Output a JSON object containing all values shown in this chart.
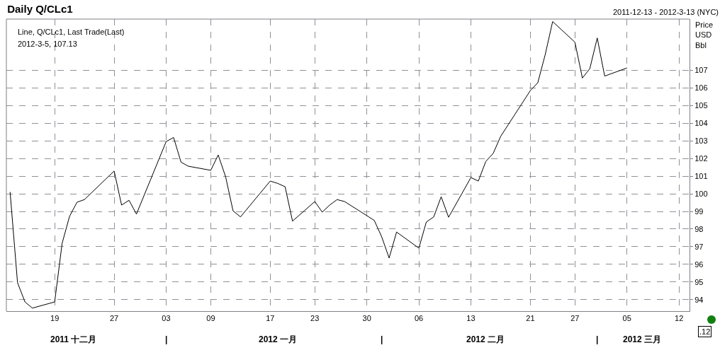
{
  "chart_data": {
    "type": "line",
    "title": "Daily Q/CLc1",
    "subtitle": "2011-12-13 - 2012-3-13 (NYC)",
    "ylabel": "Price\nUSD\nBbl",
    "annotations": [
      "Line, Q/CLc1, Last Trade(Last)",
      "2012-3-5, 107.13",
      ".12"
    ],
    "x": [
      "2011-12-13",
      "2011-12-14",
      "2011-12-15",
      "2011-12-16",
      "2011-12-19",
      "2011-12-20",
      "2011-12-21",
      "2011-12-22",
      "2011-12-23",
      "2011-12-27",
      "2011-12-28",
      "2011-12-29",
      "2011-12-30",
      "2012-01-03",
      "2012-01-04",
      "2012-01-05",
      "2012-01-06",
      "2012-01-09",
      "2012-01-10",
      "2012-01-11",
      "2012-01-12",
      "2012-01-13",
      "2012-01-17",
      "2012-01-18",
      "2012-01-19",
      "2012-01-20",
      "2012-01-23",
      "2012-01-24",
      "2012-01-25",
      "2012-01-26",
      "2012-01-27",
      "2012-01-30",
      "2012-01-31",
      "2012-02-01",
      "2012-02-02",
      "2012-02-03",
      "2012-02-06",
      "2012-02-07",
      "2012-02-08",
      "2012-02-09",
      "2012-02-10",
      "2012-02-13",
      "2012-02-14",
      "2012-02-15",
      "2012-02-16",
      "2012-02-17",
      "2012-02-21",
      "2012-02-22",
      "2012-02-23",
      "2012-02-24",
      "2012-02-27",
      "2012-02-28",
      "2012-02-29",
      "2012-03-01",
      "2012-03-02",
      "2012-03-05"
    ],
    "series": [
      {
        "color": "#000000",
        "values": [
          100.1,
          94.96,
          93.87,
          93.52,
          93.87,
          97.19,
          98.72,
          99.52,
          99.67,
          101.29,
          99.36,
          99.63,
          98.85,
          102.96,
          103.19,
          101.79,
          101.56,
          101.33,
          102.2,
          100.96,
          99.03,
          98.69,
          100.72,
          100.59,
          100.4,
          98.45,
          99.56,
          98.96,
          99.36,
          99.67,
          99.56,
          98.76,
          98.49,
          97.56,
          96.36,
          97.83,
          96.92,
          98.4,
          98.69,
          99.83,
          98.67,
          100.92,
          100.72,
          101.83,
          102.29,
          103.25,
          105.85,
          106.29,
          107.89,
          109.76,
          108.59,
          106.56,
          107.09,
          108.83,
          106.67,
          107.13
        ]
      }
    ],
    "xlim": [
      "2011-12-12T12:00",
      "2012-03-13T10:00"
    ],
    "xticks": [
      {
        "value": "2011-12-19",
        "label": "19"
      },
      {
        "value": "2011-12-27",
        "label": "27"
      },
      {
        "value": "2012-01-03",
        "label": "03"
      },
      {
        "value": "2012-01-09",
        "label": "09"
      },
      {
        "value": "2012-01-17",
        "label": "17"
      },
      {
        "value": "2012-01-23",
        "label": "23"
      },
      {
        "value": "2012-01-30",
        "label": "30"
      },
      {
        "value": "2012-02-06",
        "label": "06"
      },
      {
        "value": "2012-02-13",
        "label": "13"
      },
      {
        "value": "2012-02-21",
        "label": "21"
      },
      {
        "value": "2012-02-27",
        "label": "27"
      },
      {
        "value": "2012-03-05",
        "label": "05"
      },
      {
        "value": "2012-03-12",
        "label": "12"
      }
    ],
    "x2ticks": [
      {
        "value": "2011-12-21T12:00",
        "label": "2011 十二月"
      },
      {
        "value": "2012-01-03",
        "label": "|"
      },
      {
        "value": "2012-01-18",
        "label": "2012 一月"
      },
      {
        "value": "2012-02-01",
        "label": "|"
      },
      {
        "value": "2012-02-15",
        "label": "2012 二月"
      },
      {
        "value": "2012-03-01",
        "label": "|"
      },
      {
        "value": "2012-03-07",
        "label": "2012 三月"
      }
    ],
    "x2lim": [
      "2011-12-12T12:00",
      "2012-03-13T10:00"
    ],
    "ylim": [
      93.35,
      109.9
    ],
    "yticks": [
      94,
      95,
      96,
      97,
      98,
      99,
      100,
      101,
      102,
      103,
      104,
      105,
      106,
      107
    ],
    "grid": true,
    "marker": "none",
    "line_style": "solid"
  }
}
